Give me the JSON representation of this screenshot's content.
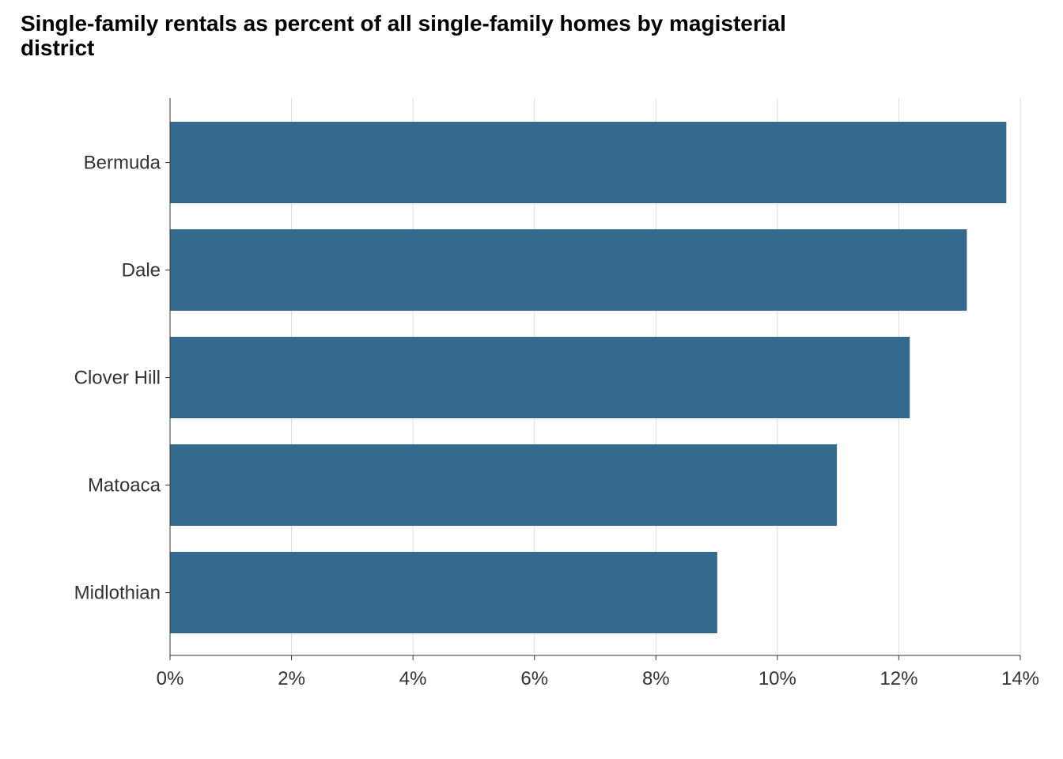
{
  "chart_data": {
    "type": "bar",
    "orientation": "horizontal",
    "title": "Single-family rentals as percent of all single-family homes by magisterial district",
    "xlabel": "",
    "ylabel": "",
    "categories": [
      "Bermuda",
      "Dale",
      "Clover Hill",
      "Matoaca",
      "Midlothian"
    ],
    "values": [
      13.77,
      13.12,
      12.18,
      10.98,
      9.01
    ],
    "xlim": [
      0,
      14
    ],
    "xticks": [
      0,
      2,
      4,
      6,
      8,
      10,
      12,
      14
    ],
    "xtick_labels": [
      "0%",
      "2%",
      "4%",
      "6%",
      "8%",
      "10%",
      "12%",
      "14%"
    ],
    "value_unit": "%",
    "grid": "vertical",
    "legend": "none",
    "bar_color": "#33698C",
    "grid_color": "#DCDCDC"
  }
}
